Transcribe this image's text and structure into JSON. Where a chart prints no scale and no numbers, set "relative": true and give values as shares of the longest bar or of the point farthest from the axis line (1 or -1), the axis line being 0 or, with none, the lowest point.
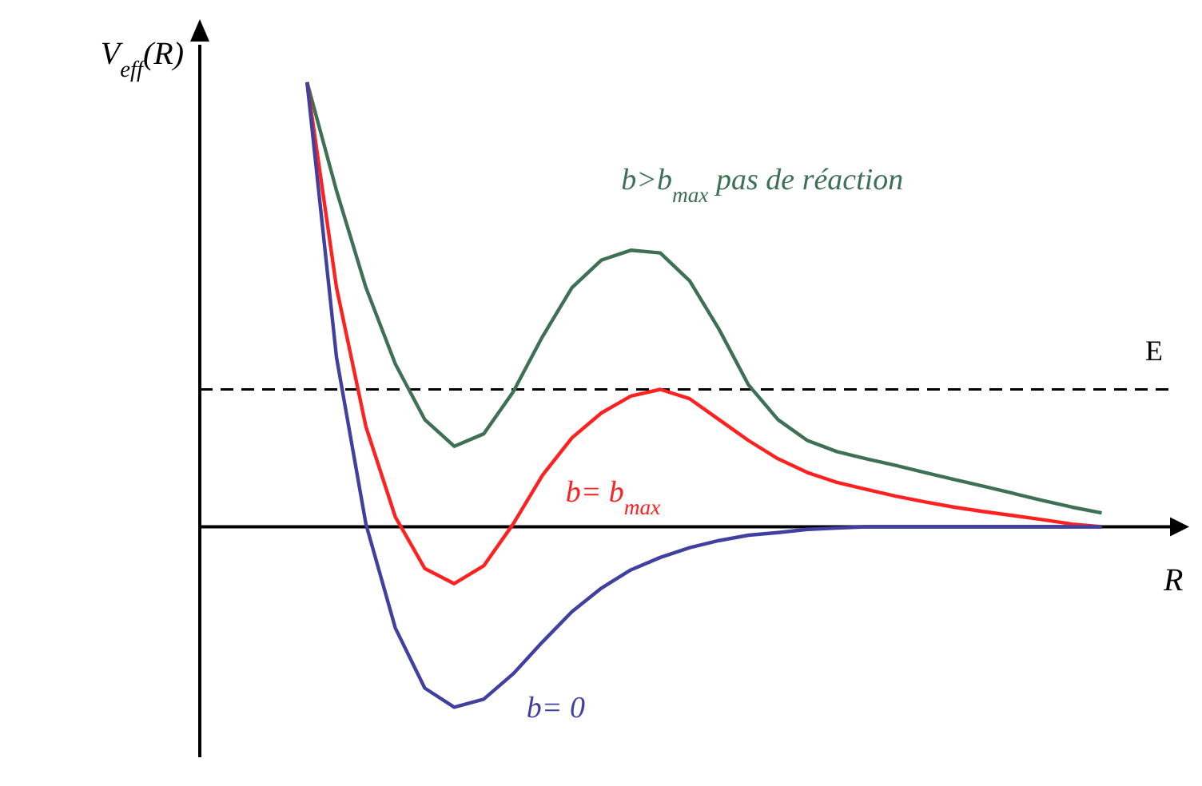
{
  "chart_data": {
    "type": "line",
    "relative": true,
    "ylabel": "V$_{eff}$(R)",
    "xlabel": "R",
    "categories": [
      null,
      null,
      null,
      null,
      null,
      null,
      null,
      null,
      null,
      null,
      null,
      null,
      null,
      null,
      null,
      null,
      null,
      null,
      null,
      null,
      null,
      null,
      null,
      null,
      null,
      null,
      null,
      null
    ],
    "series": [
      {
        "name": "b>b$_{max}$ pas de réaction",
        "color": "#3d7055",
        "values": [
          1.0,
          0.756,
          0.538,
          0.366,
          0.241,
          0.181,
          0.209,
          0.303,
          0.428,
          0.538,
          0.6,
          0.622,
          0.616,
          0.553,
          0.444,
          0.319,
          0.241,
          0.194,
          0.169,
          0.153,
          0.138,
          0.122,
          0.106,
          0.091,
          0.075,
          0.059,
          0.044,
          0.031
        ]
      },
      {
        "name": "b= b$_{max}$",
        "color": "#ff2020",
        "values": [
          1.0,
          0.538,
          0.225,
          0.022,
          -0.094,
          -0.128,
          -0.088,
          0.006,
          0.116,
          0.2,
          0.256,
          0.294,
          0.309,
          0.288,
          0.241,
          0.194,
          0.153,
          0.122,
          0.1,
          0.084,
          0.069,
          0.056,
          0.044,
          0.034,
          0.025,
          0.016,
          0.006,
          0.0
        ]
      },
      {
        "name": "b= 0",
        "color": "#4040a0",
        "values": [
          1.0,
          0.381,
          0.006,
          -0.228,
          -0.363,
          -0.406,
          -0.388,
          -0.331,
          -0.259,
          -0.191,
          -0.138,
          -0.097,
          -0.069,
          -0.047,
          -0.031,
          -0.019,
          -0.013,
          -0.006,
          -0.003,
          0.0,
          0.0,
          0.0,
          0.0,
          0.0,
          0.0,
          0.0,
          0.0,
          0.0
        ]
      }
    ],
    "ref_lines": [
      {
        "axis": "y",
        "value": 0.309,
        "label": "E",
        "color": "#000000",
        "line_style": "dashed"
      }
    ],
    "marker": "none",
    "line_style": "solid"
  }
}
